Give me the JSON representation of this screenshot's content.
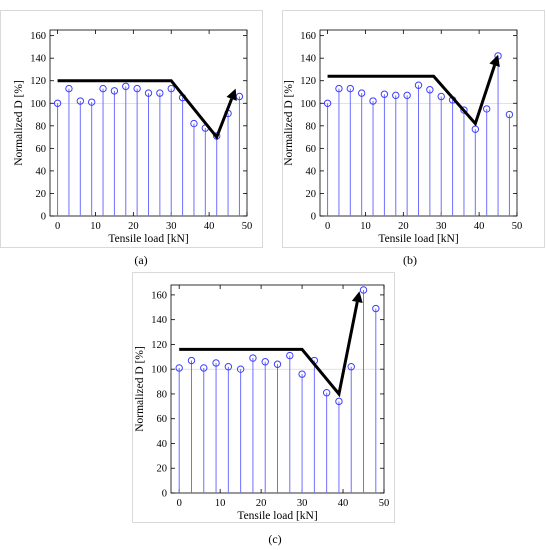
{
  "chart_data": [
    {
      "type": "stem",
      "xlabel": "Tensile load [kN]",
      "ylabel": "Normalized D [%]",
      "xlim": [
        -2,
        50
      ],
      "ylim": [
        0,
        165
      ],
      "xticks": [
        0,
        10,
        20,
        30,
        40,
        50
      ],
      "yticks": [
        0,
        20,
        40,
        60,
        80,
        100,
        120,
        140,
        160
      ],
      "caption": "(a)",
      "x": [
        0,
        3,
        6,
        9,
        12,
        15,
        18,
        21,
        24,
        27,
        30,
        33,
        36,
        39,
        42,
        45,
        48
      ],
      "y": [
        100,
        113,
        102,
        101,
        113,
        111,
        115,
        113,
        109,
        109,
        113,
        105,
        82,
        78,
        71,
        91,
        106
      ],
      "trend": [
        [
          0,
          120
        ],
        [
          30,
          120
        ],
        [
          42,
          70
        ],
        [
          47,
          113
        ]
      ]
    },
    {
      "type": "stem",
      "xlabel": "Tensile load [kN]",
      "ylabel": "Normalized D [%]",
      "xlim": [
        -2,
        50
      ],
      "ylim": [
        0,
        165
      ],
      "xticks": [
        0,
        10,
        20,
        30,
        40,
        50
      ],
      "yticks": [
        0,
        20,
        40,
        60,
        80,
        100,
        120,
        140,
        160
      ],
      "caption": "(b)",
      "x": [
        0,
        3,
        6,
        9,
        12,
        15,
        18,
        21,
        24,
        27,
        30,
        33,
        36,
        39,
        42,
        45,
        48
      ],
      "y": [
        100,
        113,
        113,
        109,
        102,
        108,
        107,
        107,
        116,
        112,
        106,
        103,
        94,
        77,
        95,
        142,
        90
      ],
      "trend": [
        [
          0,
          124
        ],
        [
          28,
          124
        ],
        [
          39,
          82
        ],
        [
          45,
          143
        ]
      ]
    },
    {
      "type": "stem",
      "xlabel": "Tensile load [kN]",
      "ylabel": "Normalized D [%]",
      "xlim": [
        -2,
        50
      ],
      "ylim": [
        0,
        168
      ],
      "xticks": [
        0,
        10,
        20,
        30,
        40,
        50
      ],
      "yticks": [
        0,
        20,
        40,
        60,
        80,
        100,
        120,
        140,
        160
      ],
      "caption": "(c)",
      "x": [
        0,
        3,
        6,
        9,
        12,
        15,
        18,
        21,
        24,
        27,
        30,
        33,
        36,
        39,
        42,
        45,
        48
      ],
      "y": [
        101,
        107,
        101,
        105,
        102,
        100,
        109,
        106,
        104,
        111,
        96,
        107,
        81,
        74,
        102,
        164,
        149
      ],
      "trend": [
        [
          0,
          116
        ],
        [
          30,
          116
        ],
        [
          39,
          80
        ],
        [
          44,
          163
        ]
      ]
    }
  ],
  "colors": {
    "stem": "#6f6fff",
    "marker": "#3f3fff",
    "trend": "#000000",
    "reference_line": "#cfcfcf"
  }
}
